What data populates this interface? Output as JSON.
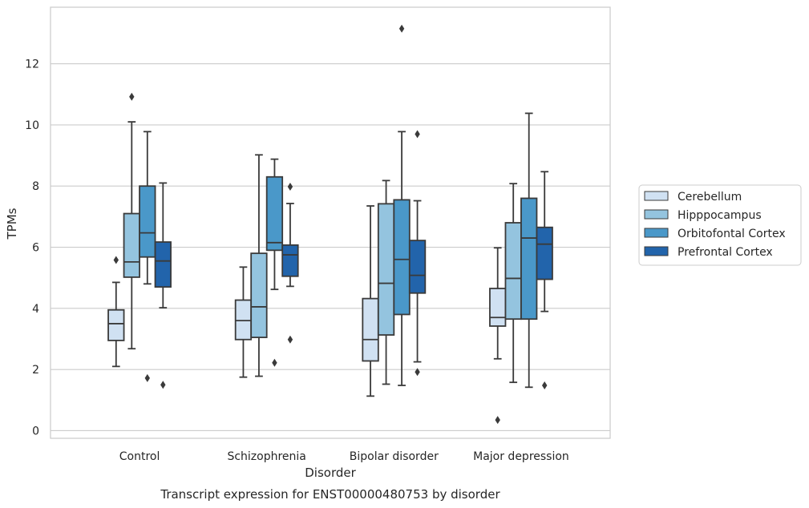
{
  "chart_data": {
    "type": "box",
    "caption": "Transcript expression for ENST00000480753 by disorder",
    "xlabel": "Disorder",
    "ylabel": "TPMs",
    "ylim": [
      -0.25,
      13.85
    ],
    "yticks": [
      0,
      2,
      4,
      6,
      8,
      10,
      12
    ],
    "grid": true,
    "legend_position": "right",
    "categories": [
      "Control",
      "Schizophrenia",
      "Bipolar disorder",
      "Major depression"
    ],
    "series": [
      {
        "name": "Cerebellum",
        "color": "#d0e1f2",
        "boxes": [
          {
            "whisker_low": 2.1,
            "q1": 2.95,
            "median": 3.5,
            "q3": 3.95,
            "whisker_high": 4.85,
            "outliers": [
              5.58
            ]
          },
          {
            "whisker_low": 1.75,
            "q1": 2.98,
            "median": 3.6,
            "q3": 4.27,
            "whisker_high": 5.35,
            "outliers": []
          },
          {
            "whisker_low": 1.13,
            "q1": 2.28,
            "median": 2.98,
            "q3": 4.32,
            "whisker_high": 7.35,
            "outliers": []
          },
          {
            "whisker_low": 2.35,
            "q1": 3.42,
            "median": 3.7,
            "q3": 4.65,
            "whisker_high": 5.98,
            "outliers": [
              0.35
            ]
          }
        ]
      },
      {
        "name": "Hipppocampus",
        "color": "#94c4df",
        "boxes": [
          {
            "whisker_low": 2.68,
            "q1": 5.02,
            "median": 5.52,
            "q3": 7.1,
            "whisker_high": 10.1,
            "outliers": [
              10.92
            ]
          },
          {
            "whisker_low": 1.78,
            "q1": 3.05,
            "median": 4.05,
            "q3": 5.8,
            "whisker_high": 9.02,
            "outliers": []
          },
          {
            "whisker_low": 1.52,
            "q1": 3.13,
            "median": 4.82,
            "q3": 7.42,
            "whisker_high": 8.18,
            "outliers": []
          },
          {
            "whisker_low": 1.58,
            "q1": 3.65,
            "median": 4.98,
            "q3": 6.8,
            "whisker_high": 8.08,
            "outliers": []
          }
        ]
      },
      {
        "name": "Orbitofontal Cortex",
        "color": "#4a98c9",
        "boxes": [
          {
            "whisker_low": 4.8,
            "q1": 5.68,
            "median": 6.47,
            "q3": 8.0,
            "whisker_high": 9.78,
            "outliers": [
              1.72
            ]
          },
          {
            "whisker_low": 4.62,
            "q1": 5.9,
            "median": 6.15,
            "q3": 8.3,
            "whisker_high": 8.88,
            "outliers": [
              2.22
            ]
          },
          {
            "whisker_low": 1.48,
            "q1": 3.8,
            "median": 5.6,
            "q3": 7.55,
            "whisker_high": 9.78,
            "outliers": [
              13.15
            ]
          },
          {
            "whisker_low": 1.42,
            "q1": 3.65,
            "median": 6.3,
            "q3": 7.6,
            "whisker_high": 10.38,
            "outliers": []
          }
        ]
      },
      {
        "name": "Prefrontal Cortex",
        "color": "#2264ab",
        "boxes": [
          {
            "whisker_low": 4.02,
            "q1": 4.7,
            "median": 5.55,
            "q3": 6.17,
            "whisker_high": 8.1,
            "outliers": [
              1.5
            ]
          },
          {
            "whisker_low": 4.72,
            "q1": 5.05,
            "median": 5.75,
            "q3": 6.07,
            "whisker_high": 7.43,
            "outliers": [
              7.98,
              2.98
            ]
          },
          {
            "whisker_low": 2.25,
            "q1": 4.5,
            "median": 5.08,
            "q3": 6.22,
            "whisker_high": 7.52,
            "outliers": [
              9.7,
              1.92
            ]
          },
          {
            "whisker_low": 3.9,
            "q1": 4.95,
            "median": 6.1,
            "q3": 6.65,
            "whisker_high": 8.47,
            "outliers": [
              1.48
            ]
          }
        ]
      }
    ]
  }
}
